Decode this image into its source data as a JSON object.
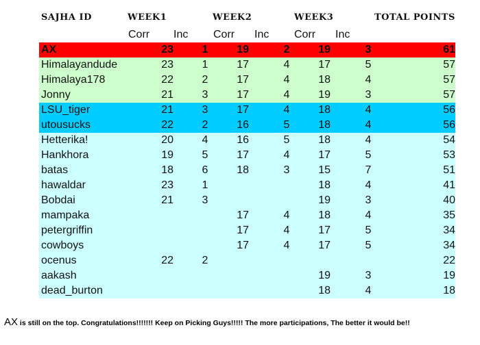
{
  "headers": {
    "id": "SAJHA ID",
    "week1": "WEEK1",
    "week2": "WEEK2",
    "week3": "WEEK3",
    "total": "TOTAL POINTS"
  },
  "subheaders": {
    "corr": "Corr",
    "inc": "Inc"
  },
  "colors": {
    "leader": "#ff0000",
    "second": "#ccffcc",
    "third": "#00ccff",
    "rest": "#ccffff"
  },
  "rows": [
    {
      "name": "AX",
      "w1c": "23",
      "w1i": "1",
      "w2c": "19",
      "w2i": "2",
      "w3c": "19",
      "w3i": "3",
      "total": "61",
      "tier": "leader"
    },
    {
      "name": "Himalayandude",
      "w1c": "23",
      "w1i": "1",
      "w2c": "17",
      "w2i": "4",
      "w3c": "17",
      "w3i": "5",
      "total": "57",
      "tier": "second"
    },
    {
      "name": "Himalaya178",
      "w1c": "22",
      "w1i": "2",
      "w2c": "17",
      "w2i": "4",
      "w3c": "18",
      "w3i": "4",
      "total": "57",
      "tier": "second"
    },
    {
      "name": "Jonny",
      "w1c": "21",
      "w1i": "3",
      "w2c": "17",
      "w2i": "4",
      "w3c": "19",
      "w3i": "3",
      "total": "57",
      "tier": "second"
    },
    {
      "name": "LSU_tiger",
      "w1c": "21",
      "w1i": "3",
      "w2c": "17",
      "w2i": "4",
      "w3c": "18",
      "w3i": "4",
      "total": "56",
      "tier": "third"
    },
    {
      "name": "utousucks",
      "w1c": "22",
      "w1i": "2",
      "w2c": "16",
      "w2i": "5",
      "w3c": "18",
      "w3i": "4",
      "total": "56",
      "tier": "third"
    },
    {
      "name": "Hetterika!",
      "w1c": "20",
      "w1i": "4",
      "w2c": "16",
      "w2i": "5",
      "w3c": "18",
      "w3i": "4",
      "total": "54",
      "tier": "rest"
    },
    {
      "name": "Hankhora",
      "w1c": "19",
      "w1i": "5",
      "w2c": "17",
      "w2i": "4",
      "w3c": "17",
      "w3i": "5",
      "total": "53",
      "tier": "rest"
    },
    {
      "name": "batas",
      "w1c": "18",
      "w1i": "6",
      "w2c": "18",
      "w2i": "3",
      "w3c": "15",
      "w3i": "7",
      "total": "51",
      "tier": "rest"
    },
    {
      "name": "hawaldar",
      "w1c": "23",
      "w1i": "1",
      "w2c": "",
      "w2i": "",
      "w3c": "18",
      "w3i": "4",
      "total": "41",
      "tier": "rest"
    },
    {
      "name": "Bobdai",
      "w1c": "21",
      "w1i": "3",
      "w2c": "",
      "w2i": "",
      "w3c": "19",
      "w3i": "3",
      "total": "40",
      "tier": "rest"
    },
    {
      "name": "mampaka",
      "w1c": "",
      "w1i": "",
      "w2c": "17",
      "w2i": "4",
      "w3c": "18",
      "w3i": "4",
      "total": "35",
      "tier": "rest"
    },
    {
      "name": "petergriffin",
      "w1c": "",
      "w1i": "",
      "w2c": "17",
      "w2i": "4",
      "w3c": "17",
      "w3i": "5",
      "total": "34",
      "tier": "rest"
    },
    {
      "name": "cowboys",
      "w1c": "",
      "w1i": "",
      "w2c": "17",
      "w2i": "4",
      "w3c": "17",
      "w3i": "5",
      "total": "34",
      "tier": "rest"
    },
    {
      "name": "ocenus",
      "w1c": "22",
      "w1i": "2",
      "w2c": "",
      "w2i": "",
      "w3c": "",
      "w3i": "",
      "total": "22",
      "tier": "rest"
    },
    {
      "name": "aakash",
      "w1c": "",
      "w1i": "",
      "w2c": "",
      "w2i": "",
      "w3c": "19",
      "w3i": "3",
      "total": "19",
      "tier": "rest"
    },
    {
      "name": "dead_burton",
      "w1c": "",
      "w1i": "",
      "w2c": "",
      "w2i": "",
      "w3c": "18",
      "w3i": "4",
      "total": "18",
      "tier": "rest"
    }
  ],
  "footer": {
    "lead": "AX",
    "message": " is still on the top. Congratulations!!!!!!! Keep on Picking Guys!!!!! The more participations, The better it would be!!"
  }
}
